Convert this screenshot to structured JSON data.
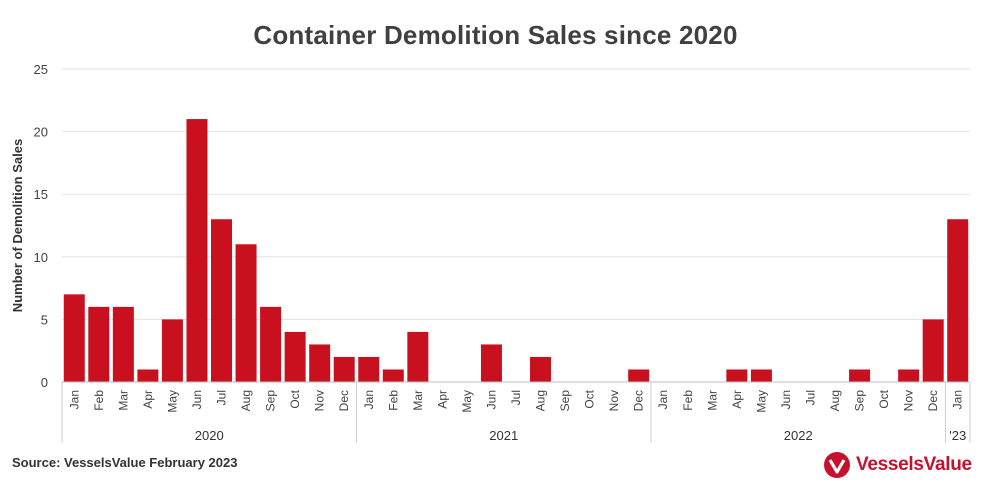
{
  "chart_data": {
    "type": "bar",
    "title": "Container Demolition Sales since 2020",
    "ylabel": "Number of Demolition Sales",
    "xlabel": "",
    "ylim": [
      0,
      25
    ],
    "yticks": [
      0,
      5,
      10,
      15,
      20,
      25
    ],
    "bar_color": "#c8101e",
    "grid": true,
    "categories": [
      "Jan",
      "Feb",
      "Mar",
      "Apr",
      "May",
      "Jun",
      "Jul",
      "Aug",
      "Sep",
      "Oct",
      "Nov",
      "Dec",
      "Jan",
      "Feb",
      "Mar",
      "Apr",
      "May",
      "Jun",
      "Jul",
      "Aug",
      "Sep",
      "Oct",
      "Nov",
      "Dec",
      "Jan",
      "Feb",
      "Mar",
      "Apr",
      "May",
      "Jun",
      "Jul",
      "Aug",
      "Sep",
      "Oct",
      "Nov",
      "Dec",
      "Jan"
    ],
    "values": [
      7,
      6,
      6,
      1,
      5,
      21,
      13,
      11,
      6,
      4,
      3,
      2,
      2,
      1,
      4,
      0,
      0,
      3,
      0,
      2,
      0,
      0,
      0,
      1,
      0,
      0,
      0,
      1,
      1,
      0,
      0,
      0,
      1,
      0,
      1,
      5,
      13
    ],
    "groups": [
      {
        "label": "2020",
        "count": 12
      },
      {
        "label": "2021",
        "count": 12
      },
      {
        "label": "2022",
        "count": 12
      },
      {
        "label": "'23",
        "count": 1
      }
    ]
  },
  "source": "Source: VesselsValue February 2023",
  "logo": {
    "text": "VesselsValue",
    "icon": "vesselsvalue-logo-icon",
    "color": "#c8102e"
  }
}
